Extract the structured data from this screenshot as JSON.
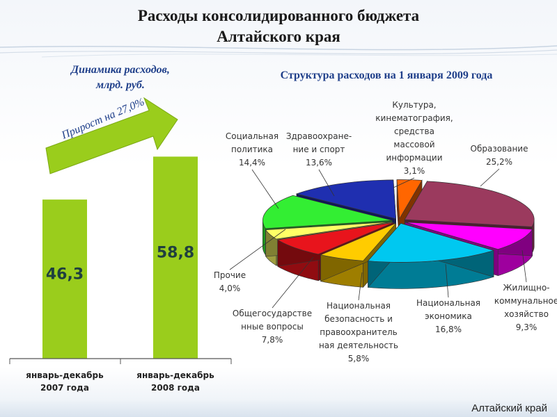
{
  "header": {
    "title_line1": "Расходы консолидированного бюджета",
    "title_line2": "Алтайского края"
  },
  "left_panel": {
    "subtitle_line1": "Динамика расходов,",
    "subtitle_line2": "млрд. руб.",
    "growth_label": "Прирост на 27,0%"
  },
  "right_panel": {
    "subtitle": "Структура расходов на 1 января 2009 года"
  },
  "footer": {
    "label": "Алтайский край"
  },
  "colors": {
    "bar": "#9acd1c",
    "arrow": "#9acd1c",
    "title_blue": "#1f3f8a"
  },
  "chart_data": [
    {
      "type": "bar",
      "categories": [
        [
          "январь-декабрь",
          "2007 года"
        ],
        [
          "январь-декабрь",
          "2008 года"
        ]
      ],
      "values": [
        46.3,
        58.8
      ],
      "value_labels": [
        "46,3",
        "58,8"
      ],
      "ylim": [
        0,
        70
      ],
      "grid": false
    },
    {
      "type": "pie",
      "style": "3d-exploded",
      "slices": [
        {
          "label_lines": [
            "Образование",
            "25,2%"
          ],
          "value": 25.2,
          "color": "#9b3a5e"
        },
        {
          "label_lines": [
            "Жилищно-",
            "коммунальное",
            "хозяйство",
            "9,3%"
          ],
          "value": 9.3,
          "color": "#ff00ff"
        },
        {
          "label_lines": [
            "Национальная",
            "экономика",
            "16,8%"
          ],
          "value": 16.8,
          "color": "#00c8f0"
        },
        {
          "label_lines": [
            "Национальная",
            "безопасность и",
            "правоохранитель",
            "ная деятельность",
            "5,8%"
          ],
          "value": 5.8,
          "color": "#ffcc00"
        },
        {
          "label_lines": [
            "Общегосударстве",
            "нные вопросы",
            "7,8%"
          ],
          "value": 7.8,
          "color": "#e8141c"
        },
        {
          "label_lines": [
            "Прочие",
            "4,0%"
          ],
          "value": 4.0,
          "color": "#ffff66"
        },
        {
          "label_lines": [
            "Социальная",
            "политика",
            "14,4%"
          ],
          "value": 14.4,
          "color": "#33ee33"
        },
        {
          "label_lines": [
            "Здравоохране-",
            "ние и спорт",
            "13,6%"
          ],
          "value": 13.6,
          "color": "#1f2fb0"
        },
        {
          "label_lines": [
            "Культура,",
            "кинематография,",
            "средства",
            "массовой",
            "информации",
            "3,1%"
          ],
          "value": 3.1,
          "color": "#ff6600"
        }
      ]
    }
  ]
}
